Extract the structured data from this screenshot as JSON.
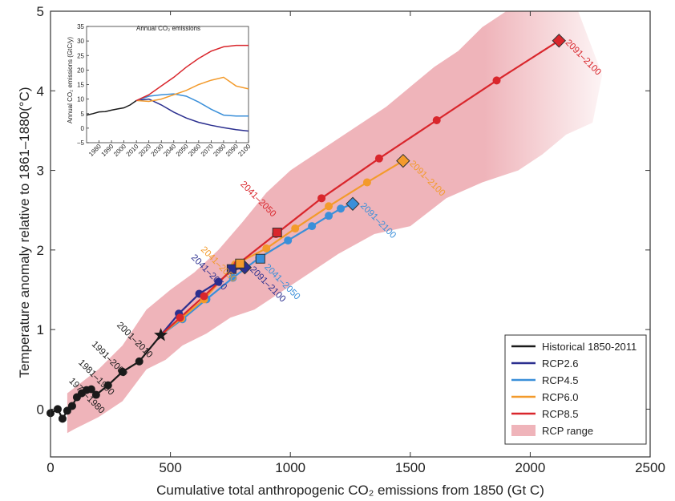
{
  "chart_data": [
    {
      "type": "line",
      "xlabel": "Cumulative total anthropogenic CO₂ emissions from 1850 (Gt C)",
      "ylabel": "Temperature anomaly relative to 1861–1880(°C)",
      "xlim": [
        0,
        2500
      ],
      "ylim": [
        -0.6,
        5
      ],
      "xticks": [
        "0",
        "500",
        "1000",
        "1500",
        "2000",
        "2500"
      ],
      "yticks": [
        "0",
        "1",
        "2",
        "3",
        "4",
        "5"
      ],
      "grid": false,
      "legend_position": "bottom-right",
      "legend": [
        {
          "label": "Historical 1850-2011",
          "color": "#1a1a1a",
          "kind": "line"
        },
        {
          "label": "RCP2.6",
          "color": "#2b2f8f",
          "kind": "line"
        },
        {
          "label": "RCP4.5",
          "color": "#3a8fd9",
          "kind": "line"
        },
        {
          "label": "RCP6.0",
          "color": "#f39a2b",
          "kind": "line"
        },
        {
          "label": "RCP8.5",
          "color": "#d9262c",
          "kind": "line"
        },
        {
          "label": "RCP range",
          "color": "#efb4ba",
          "kind": "patch"
        }
      ],
      "range_band": {
        "upper": [
          [
            70,
            0.2
          ],
          [
            200,
            0.5
          ],
          [
            300,
            0.8
          ],
          [
            400,
            1.25
          ],
          [
            500,
            1.5
          ],
          [
            600,
            1.72
          ],
          [
            700,
            2.0
          ],
          [
            800,
            2.35
          ],
          [
            900,
            2.72
          ],
          [
            1000,
            3.0
          ],
          [
            1100,
            3.2
          ],
          [
            1200,
            3.4
          ],
          [
            1300,
            3.6
          ],
          [
            1400,
            3.8
          ],
          [
            1500,
            4.05
          ],
          [
            1600,
            4.3
          ],
          [
            1700,
            4.5
          ],
          [
            1800,
            4.8
          ],
          [
            1900,
            5.0
          ],
          [
            2200,
            5.0
          ],
          [
            2300,
            4.2
          ],
          [
            2260,
            3.6
          ],
          [
            2150,
            3.45
          ]
        ],
        "lower": [
          [
            2150,
            3.45
          ],
          [
            2050,
            3.2
          ],
          [
            1950,
            3.0
          ],
          [
            1800,
            2.85
          ],
          [
            1650,
            2.65
          ],
          [
            1500,
            2.3
          ],
          [
            1350,
            2.2
          ],
          [
            1200,
            1.95
          ],
          [
            1050,
            1.65
          ],
          [
            950,
            1.45
          ],
          [
            850,
            1.25
          ],
          [
            750,
            1.15
          ],
          [
            650,
            0.95
          ],
          [
            550,
            0.8
          ],
          [
            480,
            0.62
          ],
          [
            400,
            0.5
          ],
          [
            300,
            0.1
          ],
          [
            200,
            -0.1
          ],
          [
            100,
            -0.25
          ],
          [
            70,
            -0.3
          ]
        ]
      },
      "series": [
        {
          "name": "Historical 1850-2011",
          "color": "#1a1a1a",
          "marker": "circle",
          "x": [
            0,
            30,
            50,
            70,
            90,
            110,
            130,
            150,
            170,
            190,
            240,
            300,
            370
          ],
          "y": [
            -0.05,
            0.0,
            -0.12,
            -0.02,
            0.04,
            0.15,
            0.2,
            0.24,
            0.25,
            0.18,
            0.3,
            0.47,
            0.6
          ],
          "end": {
            "x": 460,
            "y": 0.93,
            "marker": "star"
          }
        },
        {
          "name": "RCP2.6",
          "color": "#2b2f8f",
          "marker": "circle",
          "x": [
            460,
            535,
            620,
            700,
            760,
            810
          ],
          "y": [
            0.93,
            1.2,
            1.45,
            1.6,
            1.75,
            1.78
          ],
          "end": {
            "x": 810,
            "y": 1.78,
            "marker": "diamond"
          }
        },
        {
          "name": "RCP4.5",
          "color": "#3a8fd9",
          "marker": "circle",
          "x": [
            460,
            550,
            650,
            760,
            870,
            990,
            1090,
            1160,
            1210,
            1260
          ],
          "y": [
            0.93,
            1.13,
            1.38,
            1.65,
            1.9,
            2.12,
            2.3,
            2.43,
            2.52,
            2.58
          ],
          "end": {
            "x": 1260,
            "y": 2.58,
            "marker": "diamond"
          }
        },
        {
          "name": "RCP6.0",
          "color": "#f39a2b",
          "marker": "circle",
          "x": [
            460,
            545,
            640,
            770,
            900,
            1020,
            1160,
            1320,
            1470
          ],
          "y": [
            0.93,
            1.14,
            1.38,
            1.82,
            2.02,
            2.27,
            2.55,
            2.85,
            3.12
          ],
          "end": {
            "x": 1470,
            "y": 3.12,
            "marker": "diamond"
          }
        },
        {
          "name": "RCP8.5",
          "color": "#d9262c",
          "marker": "circle",
          "x": [
            460,
            540,
            640,
            780,
            940,
            1130,
            1370,
            1610,
            1860,
            2120
          ],
          "y": [
            0.93,
            1.15,
            1.42,
            1.82,
            2.2,
            2.65,
            3.15,
            3.63,
            4.13,
            4.63
          ],
          "end": {
            "x": 2120,
            "y": 4.63,
            "marker": "diamond"
          }
        }
      ],
      "squares": [
        {
          "series": "RCP2.6",
          "x": 755,
          "y": 1.76,
          "color": "#2b2f8f"
        },
        {
          "series": "RCP4.5",
          "x": 875,
          "y": 1.89,
          "color": "#3a8fd9"
        },
        {
          "series": "RCP6.0",
          "x": 790,
          "y": 1.83,
          "color": "#f39a2b"
        },
        {
          "series": "RCP8.5",
          "x": 945,
          "y": 2.22,
          "color": "#d9262c"
        }
      ],
      "annotations": [
        {
          "text": "1971–1980",
          "x": 75,
          "y": 0.35,
          "color": "#1a1a1a"
        },
        {
          "text": "1981–1990",
          "x": 115,
          "y": 0.58,
          "color": "#1a1a1a"
        },
        {
          "text": "1991–2000",
          "x": 170,
          "y": 0.81,
          "color": "#1a1a1a"
        },
        {
          "text": "2001–2010",
          "x": 275,
          "y": 1.05,
          "color": "#1a1a1a"
        },
        {
          "text": "2041–2050",
          "x": 585,
          "y": 1.9,
          "color": "#2b2f8f"
        },
        {
          "text": "2041–2050",
          "x": 625,
          "y": 2.0,
          "color": "#f39a2b"
        },
        {
          "text": "2041–2050",
          "x": 790,
          "y": 2.82,
          "color": "#d9262c"
        },
        {
          "text": "2041–2050",
          "x": 890,
          "y": 1.78,
          "color": "#3a8fd9"
        },
        {
          "text": "2091–2100",
          "x": 830,
          "y": 1.75,
          "color": "#2b2f8f"
        },
        {
          "text": "2091–2100",
          "x": 1290,
          "y": 2.55,
          "color": "#3a8fd9"
        },
        {
          "text": "2091–2100",
          "x": 1495,
          "y": 3.08,
          "color": "#f39a2b"
        },
        {
          "text": "2091–2100",
          "x": 2145,
          "y": 4.6,
          "color": "#d9262c"
        }
      ]
    },
    {
      "type": "line",
      "title": "Annual CO₂ emissions",
      "ylabel": "Annual CO₂ emissions (GtC/y)",
      "xlim": [
        1970,
        2100
      ],
      "ylim": [
        -5,
        35
      ],
      "xticks": [
        "1980",
        "1990",
        "2000",
        "2010",
        "2020",
        "2030",
        "2040",
        "2050",
        "2060",
        "2070",
        "2080",
        "2090",
        "2100"
      ],
      "yticks": [
        "−5",
        "0",
        "5",
        "10",
        "15",
        "20",
        "25",
        "30",
        "35"
      ],
      "series": [
        {
          "name": "Historical",
          "color": "#1a1a1a",
          "x": [
            1970,
            1975,
            1980,
            1985,
            1990,
            1995,
            2000,
            2005,
            2010
          ],
          "y": [
            4.5,
            5.0,
            5.6,
            5.7,
            6.2,
            6.6,
            7.0,
            8.0,
            9.5
          ]
        },
        {
          "name": "RCP2.6",
          "color": "#2b2f8f",
          "x": [
            2010,
            2020,
            2030,
            2040,
            2050,
            2060,
            2070,
            2080,
            2090,
            2100
          ],
          "y": [
            9.5,
            10,
            8,
            5.5,
            3.5,
            2,
            1,
            0.2,
            -0.5,
            -1
          ]
        },
        {
          "name": "RCP4.5",
          "color": "#3a8fd9",
          "x": [
            2010,
            2020,
            2030,
            2040,
            2050,
            2060,
            2070,
            2080,
            2090,
            2100
          ],
          "y": [
            9.5,
            11,
            11.5,
            11.8,
            11,
            9,
            6.5,
            4.5,
            4.2,
            4.2
          ]
        },
        {
          "name": "RCP6.0",
          "color": "#f39a2b",
          "x": [
            2010,
            2020,
            2030,
            2040,
            2050,
            2060,
            2070,
            2080,
            2090,
            2100
          ],
          "y": [
            9.5,
            9.2,
            10,
            11.5,
            13,
            15,
            16.5,
            17.5,
            14.5,
            13.5
          ]
        },
        {
          "name": "RCP8.5",
          "color": "#d9262c",
          "x": [
            2010,
            2020,
            2030,
            2040,
            2050,
            2060,
            2070,
            2080,
            2090,
            2100
          ],
          "y": [
            9.5,
            11.5,
            14.5,
            17.5,
            21,
            24,
            26.5,
            28,
            28.5,
            28.5
          ]
        }
      ]
    }
  ]
}
